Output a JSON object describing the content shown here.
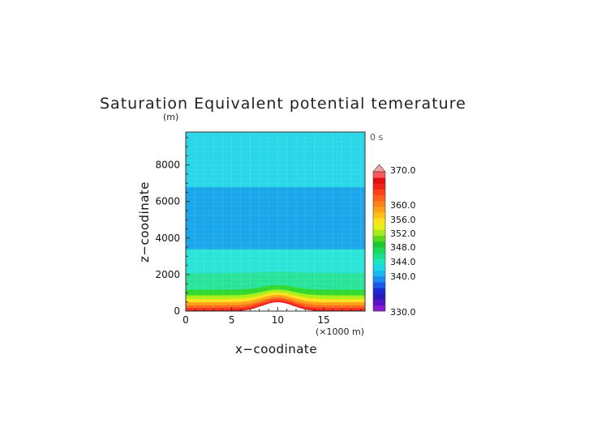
{
  "chart_data": {
    "type": "heatmap",
    "title": "Saturation Equivalent potential temerature",
    "time_label": "0 s",
    "xlabel": "x−coodinate",
    "ylabel": "z−coodinate",
    "x_unit": "(×1000 m)",
    "y_unit": "(m)",
    "xlim": [
      0,
      19.5
    ],
    "ylim": [
      0,
      9800
    ],
    "x_ticks": [
      "0",
      "5",
      "10",
      "15"
    ],
    "y_ticks": [
      "0",
      "2000",
      "4000",
      "6000",
      "8000"
    ],
    "hill": {
      "center_x": 10,
      "half_width": 2.4,
      "height": 500
    },
    "layers": [
      {
        "z": [
          0,
          80
        ],
        "color": "#ee1111"
      },
      {
        "z": [
          80,
          200
        ],
        "color": "#ff3a1a"
      },
      {
        "z": [
          200,
          330
        ],
        "color": "#ff6a1a"
      },
      {
        "z": [
          330,
          500
        ],
        "color": "#ffa21a"
      },
      {
        "z": [
          500,
          680
        ],
        "color": "#ffe21a"
      },
      {
        "z": [
          680,
          880
        ],
        "color": "#a8f01a"
      },
      {
        "z": [
          880,
          1180
        ],
        "color": "#2ed82e"
      },
      {
        "z": [
          1180,
          2100
        ],
        "color": "#2ae39a"
      },
      {
        "z": [
          2100,
          3400
        ],
        "color": "#2be4d8"
      },
      {
        "z": [
          3400,
          6800
        ],
        "color": "#1aa6ea"
      },
      {
        "z": [
          6800,
          9800
        ],
        "color": "#2ad7e8"
      }
    ],
    "colorbar": {
      "labels": [
        "370.0",
        "360.0",
        "356.0",
        "352.0",
        "348.0",
        "344.0",
        "340.0",
        "330.0"
      ],
      "colors_bottom_to_top": [
        "#8a1ad4",
        "#5a14c8",
        "#2a1ab8",
        "#1a2ad0",
        "#1a5ae6",
        "#1a8ef0",
        "#1ab8f0",
        "#1ad8e8",
        "#1ae6c0",
        "#1ae08a",
        "#1ad85a",
        "#1ac830",
        "#5ad81a",
        "#a8ea1a",
        "#e2f01a",
        "#ffe01a",
        "#ffc01a",
        "#ffa01a",
        "#ff801a",
        "#ff601a",
        "#ff401a",
        "#f0201a",
        "#e01010",
        "#ff5a5a"
      ],
      "extend_color": "#f4a0a0"
    }
  }
}
